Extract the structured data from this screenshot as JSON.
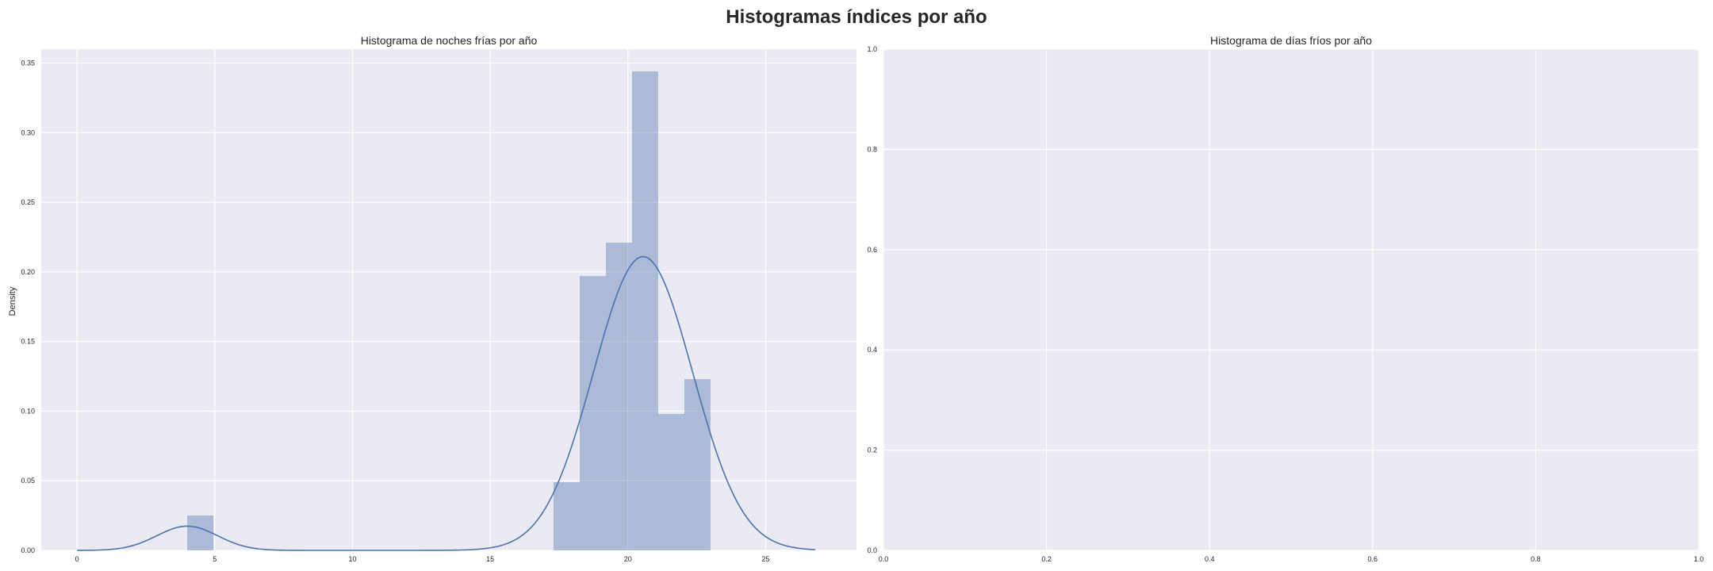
{
  "figure": {
    "suptitle": "Histogramas índices por año"
  },
  "style": {
    "plot_background": "#eaeaf2",
    "grid_color": "#ffffff",
    "bar_color": "#4c72b0",
    "bar_alpha": 0.4,
    "kde_color": "#4c72b0",
    "text_color": "#262626"
  },
  "chart_data": [
    {
      "type": "histogram",
      "title": "Histograma de noches frías por año",
      "xlabel": "",
      "ylabel": "Density",
      "xlim": [
        -1.3,
        28.3
      ],
      "ylim": [
        0,
        0.36
      ],
      "xticks": [
        0,
        5,
        10,
        15,
        20,
        25
      ],
      "yticks": [
        0.0,
        0.05,
        0.1,
        0.15,
        0.2,
        0.25,
        0.3,
        0.35
      ],
      "ytick_labels": [
        "0.00",
        "0.05",
        "0.10",
        "0.15",
        "0.20",
        "0.25",
        "0.30",
        "0.35"
      ],
      "grid": true,
      "bins": [
        {
          "x0": 4.0,
          "x1": 4.95,
          "density": 0.025
        },
        {
          "x0": 17.3,
          "x1": 18.25,
          "density": 0.049
        },
        {
          "x0": 18.25,
          "x1": 19.2,
          "density": 0.197
        },
        {
          "x0": 19.2,
          "x1": 20.15,
          "density": 0.221
        },
        {
          "x0": 20.15,
          "x1": 21.1,
          "density": 0.344
        },
        {
          "x0": 21.1,
          "x1": 22.05,
          "density": 0.098
        },
        {
          "x0": 22.05,
          "x1": 23.0,
          "density": 0.123
        }
      ],
      "kde": {
        "x_range": [
          0,
          26.8
        ],
        "components": [
          {
            "weight": 0.048,
            "mean": 4.0,
            "sd": 1.1
          },
          {
            "weight": 0.952,
            "mean": 20.55,
            "sd": 1.8
          }
        ]
      }
    },
    {
      "type": "histogram",
      "title": "Histograma de días fríos por año",
      "xlabel": "",
      "ylabel": "",
      "xlim": [
        0,
        1
      ],
      "ylim": [
        0,
        1
      ],
      "xticks": [
        0,
        0.2,
        0.4,
        0.6,
        0.8,
        1.0
      ],
      "xtick_labels": [
        "0.0",
        "0.2",
        "0.4",
        "0.6",
        "0.8",
        "1.0"
      ],
      "yticks": [
        0,
        0.2,
        0.4,
        0.6,
        0.8,
        1.0
      ],
      "ytick_labels": [
        "0.0",
        "0.2",
        "0.4",
        "0.6",
        "0.8",
        "1.0"
      ],
      "grid": true,
      "bins": []
    }
  ]
}
